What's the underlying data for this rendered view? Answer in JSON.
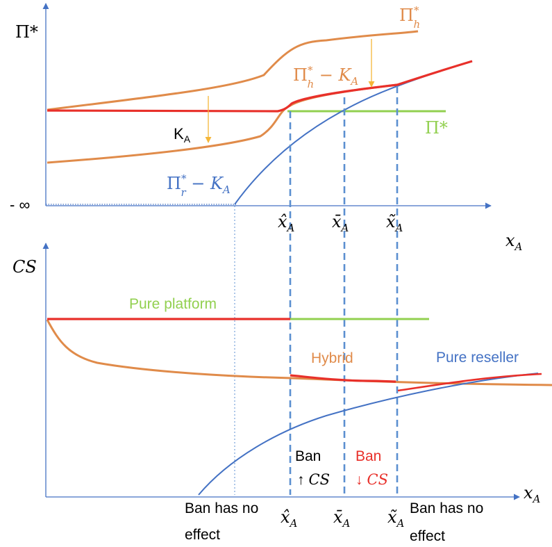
{
  "top_panel": {
    "y_axis_label": "Π*",
    "neg_infinity_label": "- ∞",
    "curves": {
      "pi_h": {
        "base": "Π",
        "sup": "*",
        "sub": "h"
      },
      "pi_h_minus_ka": {
        "base": "Π",
        "sup": "*",
        "sub": "h",
        "tail": " − K",
        "tail_sub": "A"
      },
      "pi_star": {
        "text": "Π*"
      },
      "pi_r_minus_ka": {
        "base": "Π",
        "sup": "*",
        "sub": "r",
        "tail": " − K",
        "tail_sub": "A"
      }
    },
    "ka_label": {
      "base": "K",
      "sub": "A"
    },
    "thresholds": {
      "x_hat": {
        "base": "x̂",
        "sub": "A"
      },
      "x_bar": {
        "base": "x̄",
        "sub": "A"
      },
      "x_tilde": {
        "base": "x̃",
        "sub": "A"
      }
    },
    "x_axis_label": {
      "base": "x",
      "sub": "A"
    }
  },
  "bottom_panel": {
    "y_axis_label": "CS",
    "regions": {
      "pure_platform": "Pure platform",
      "hybrid": "Hybrid",
      "pure_reseller": "Pure reseller"
    },
    "ban_up": {
      "line1": "Ban",
      "line2_arrow": "↑",
      "line2_text": "CS"
    },
    "ban_down": {
      "line1": "Ban",
      "line2_arrow": "↓",
      "line2_text": "CS"
    },
    "no_effect_left": {
      "line1": "Ban has no",
      "line2": "effect"
    },
    "no_effect_right": {
      "line1": "Ban has no",
      "line2": "effect"
    },
    "thresholds": {
      "x_hat": {
        "base": "x̂",
        "sub": "A"
      },
      "x_bar": {
        "base": "x̄",
        "sub": "A"
      },
      "x_tilde": {
        "base": "x̃",
        "sub": "A"
      }
    },
    "x_axis_label": {
      "base": "x",
      "sub": "A"
    }
  },
  "colors": {
    "axis": "#4472c4",
    "orange": "#e08b4a",
    "red": "#e8302a",
    "green": "#92d050",
    "blue": "#4472c4",
    "dashed": "#5b8fd0",
    "arrow_yellow": "#f5b638",
    "text_black": "#000000"
  }
}
